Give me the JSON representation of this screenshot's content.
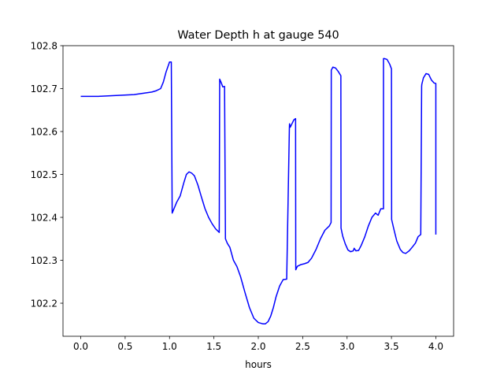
{
  "chart_data": {
    "type": "line",
    "title": "Water Depth h at gauge 540",
    "xlabel": "hours",
    "ylabel": "",
    "xlim": [
      -0.2,
      4.2
    ],
    "ylim": [
      102.123,
      102.8
    ],
    "xticks": [
      0.0,
      0.5,
      1.0,
      1.5,
      2.0,
      2.5,
      3.0,
      3.5,
      4.0
    ],
    "xtick_labels": [
      "0.0",
      "0.5",
      "1.0",
      "1.5",
      "2.0",
      "2.5",
      "3.0",
      "3.5",
      "4.0"
    ],
    "yticks": [
      102.2,
      102.3,
      102.4,
      102.5,
      102.6,
      102.7,
      102.8
    ],
    "ytick_labels": [
      "102.2",
      "102.3",
      "102.4",
      "102.5",
      "102.6",
      "102.7",
      "102.8"
    ],
    "grid": false,
    "series": [
      {
        "color": "#0000ff",
        "x": [
          0.0,
          0.2,
          0.4,
          0.6,
          0.7,
          0.8,
          0.85,
          0.9,
          0.93,
          0.96,
          1.0,
          1.02,
          1.03,
          1.05,
          1.08,
          1.12,
          1.16,
          1.19,
          1.22,
          1.25,
          1.28,
          1.32,
          1.36,
          1.4,
          1.44,
          1.48,
          1.52,
          1.56,
          1.565,
          1.58,
          1.6,
          1.62,
          1.63,
          1.65,
          1.68,
          1.72,
          1.76,
          1.8,
          1.85,
          1.9,
          1.95,
          2.0,
          2.05,
          2.08,
          2.11,
          2.14,
          2.17,
          2.2,
          2.24,
          2.28,
          2.32,
          2.35,
          2.352,
          2.36,
          2.4,
          2.42,
          2.422,
          2.44,
          2.48,
          2.52,
          2.56,
          2.6,
          2.65,
          2.7,
          2.75,
          2.8,
          2.82,
          2.822,
          2.84,
          2.87,
          2.9,
          2.93,
          2.932,
          2.95,
          2.98,
          3.01,
          3.04,
          3.07,
          3.08,
          3.1,
          3.13,
          3.16,
          3.2,
          3.24,
          3.28,
          3.32,
          3.35,
          3.38,
          3.41,
          3.41,
          3.42,
          3.45,
          3.48,
          3.5,
          3.502,
          3.53,
          3.56,
          3.6,
          3.63,
          3.66,
          3.7,
          3.74,
          3.77,
          3.8,
          3.83,
          3.84,
          3.842,
          3.86,
          3.89,
          3.92,
          3.95,
          3.98,
          4.0,
          4.0
        ],
        "y": [
          102.682,
          102.682,
          102.684,
          102.686,
          102.689,
          102.692,
          102.695,
          102.7,
          102.715,
          102.738,
          102.762,
          102.762,
          102.41,
          102.42,
          102.435,
          102.45,
          102.48,
          102.5,
          102.506,
          102.503,
          102.497,
          102.475,
          102.447,
          102.42,
          102.4,
          102.385,
          102.373,
          102.365,
          102.722,
          102.715,
          102.704,
          102.705,
          102.35,
          102.34,
          102.33,
          102.3,
          102.285,
          102.262,
          102.225,
          102.19,
          102.165,
          102.155,
          102.152,
          102.152,
          102.157,
          102.17,
          102.19,
          102.215,
          102.24,
          102.255,
          102.256,
          102.607,
          102.618,
          102.61,
          102.627,
          102.63,
          102.278,
          102.286,
          102.29,
          102.292,
          102.295,
          102.305,
          102.325,
          102.35,
          102.37,
          102.38,
          102.388,
          102.743,
          102.75,
          102.748,
          102.74,
          102.73,
          102.375,
          102.357,
          102.338,
          102.324,
          102.32,
          102.322,
          102.328,
          102.322,
          102.323,
          102.335,
          102.355,
          102.38,
          102.4,
          102.41,
          102.405,
          102.42,
          102.42,
          102.77,
          102.77,
          102.768,
          102.757,
          102.746,
          102.395,
          102.37,
          102.345,
          102.325,
          102.318,
          102.316,
          102.322,
          102.332,
          102.34,
          102.355,
          102.36,
          102.705,
          102.71,
          102.725,
          102.735,
          102.733,
          102.72,
          102.713,
          102.712,
          102.36
        ]
      }
    ]
  }
}
